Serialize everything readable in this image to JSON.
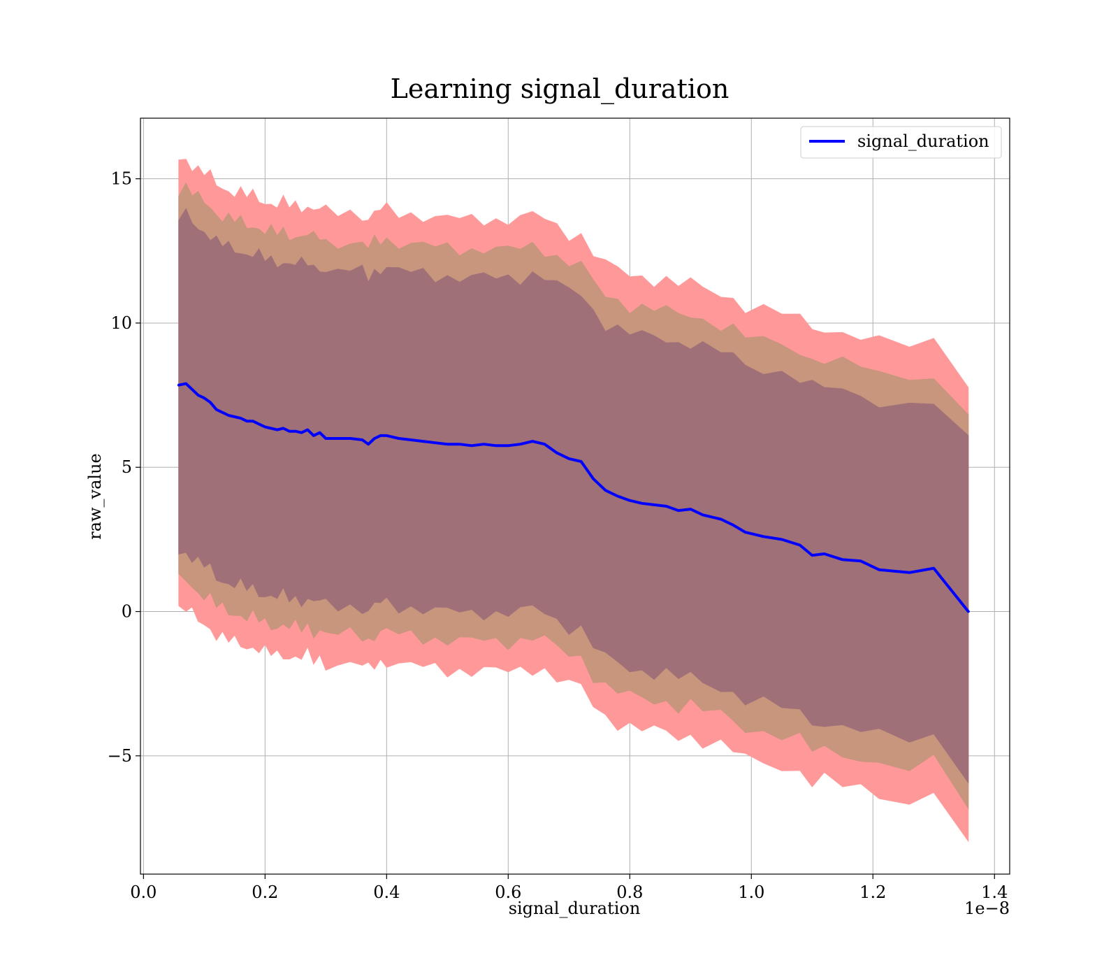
{
  "chart_data": {
    "type": "line",
    "title": "Learning signal_duration",
    "xlabel": "signal_duration",
    "ylabel": "raw_value",
    "x_offset_label": "1e−8",
    "x_scale": 1e-08,
    "xlim": [
      -0.005,
      1.425
    ],
    "ylim": [
      -9.1,
      17.1
    ],
    "x_ticks": [
      0.0,
      0.2,
      0.4,
      0.6,
      0.8,
      1.0,
      1.2,
      1.4
    ],
    "x_tick_labels": [
      "0.0",
      "0.2",
      "0.4",
      "0.6",
      "0.8",
      "1.0",
      "1.2",
      "1.4"
    ],
    "y_ticks": [
      -5,
      0,
      5,
      10,
      15
    ],
    "y_tick_labels": [
      "−5",
      "0",
      "5",
      "10",
      "15"
    ],
    "grid": true,
    "legend_position": "upper-right",
    "colors": {
      "line": "#0000ff",
      "outer_band": "#ff9999",
      "middle_band": "#c8957d",
      "inner_band": "#a07078",
      "grid": "#b0b0b0"
    },
    "series": [
      {
        "name": "signal_duration",
        "x": [
          0.058,
          0.07,
          0.08,
          0.09,
          0.1,
          0.11,
          0.12,
          0.13,
          0.14,
          0.15,
          0.16,
          0.17,
          0.18,
          0.19,
          0.2,
          0.21,
          0.22,
          0.23,
          0.24,
          0.25,
          0.26,
          0.27,
          0.28,
          0.29,
          0.3,
          0.32,
          0.34,
          0.36,
          0.37,
          0.38,
          0.39,
          0.4,
          0.42,
          0.44,
          0.46,
          0.48,
          0.5,
          0.52,
          0.54,
          0.56,
          0.58,
          0.6,
          0.62,
          0.64,
          0.66,
          0.68,
          0.7,
          0.72,
          0.74,
          0.76,
          0.78,
          0.8,
          0.82,
          0.84,
          0.86,
          0.88,
          0.9,
          0.92,
          0.95,
          0.97,
          0.99,
          1.02,
          1.05,
          1.08,
          1.1,
          1.12,
          1.15,
          1.18,
          1.21,
          1.26,
          1.3,
          1.357
        ],
        "y": [
          7.85,
          7.9,
          7.7,
          7.5,
          7.4,
          7.25,
          7.0,
          6.9,
          6.8,
          6.75,
          6.7,
          6.6,
          6.6,
          6.5,
          6.4,
          6.35,
          6.3,
          6.35,
          6.25,
          6.25,
          6.2,
          6.3,
          6.1,
          6.2,
          6.0,
          6.0,
          6.0,
          5.95,
          5.8,
          6.0,
          6.1,
          6.1,
          6.0,
          5.95,
          5.9,
          5.85,
          5.8,
          5.8,
          5.75,
          5.8,
          5.75,
          5.75,
          5.8,
          5.9,
          5.8,
          5.5,
          5.3,
          5.2,
          4.6,
          4.2,
          4.0,
          3.85,
          3.75,
          3.7,
          3.65,
          3.5,
          3.55,
          3.35,
          3.2,
          3.0,
          2.75,
          2.6,
          2.5,
          2.3,
          1.95,
          2.0,
          1.8,
          1.75,
          1.45,
          1.35,
          1.5,
          0.0
        ]
      }
    ],
    "bands": [
      {
        "name": "outer",
        "half_width_start": 7.8,
        "half_width_end": 7.85
      },
      {
        "name": "middle",
        "half_width_start": 6.8,
        "half_width_end": 6.75
      },
      {
        "name": "inner",
        "half_width_start": 5.8,
        "half_width_end": 5.8
      }
    ]
  }
}
